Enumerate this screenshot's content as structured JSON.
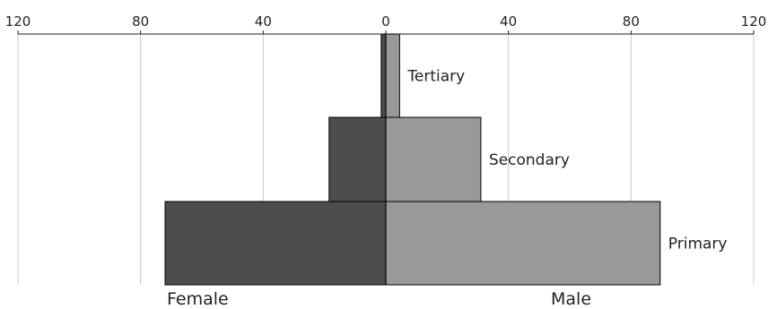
{
  "chart_data": {
    "type": "bar",
    "orientation": "horizontal",
    "layout": "population-pyramid",
    "categories": [
      "Tertiary",
      "Secondary",
      "Primary"
    ],
    "series": [
      {
        "name": "Female",
        "values": [
          1.5,
          18.5,
          72
        ],
        "color": "#4d4d4d"
      },
      {
        "name": "Male",
        "values": [
          4.5,
          31,
          89.5
        ],
        "color": "#999999"
      }
    ],
    "x_ticks": [
      "120",
      "80",
      "40",
      "0",
      "40",
      "80",
      "120"
    ],
    "xlim": [
      -120,
      120
    ],
    "grid": "vertical",
    "axis_position": "top",
    "title": "",
    "xlabel": "",
    "ylabel": ""
  }
}
